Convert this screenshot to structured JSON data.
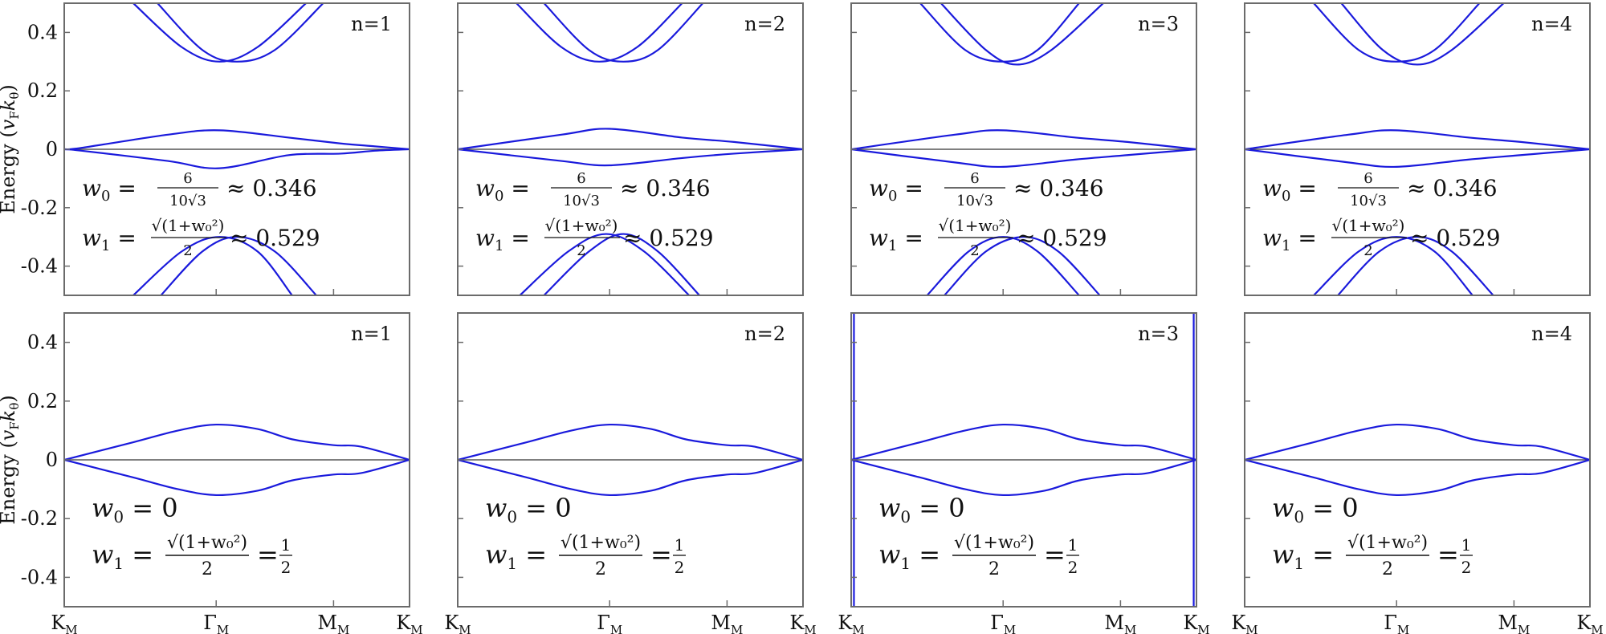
{
  "chart_data": [
    {
      "type": "line",
      "row": 0,
      "panel_label": "n=1",
      "ylabel": "Energy (v_F k_θ)",
      "x_ticks": [
        "K_M",
        "Γ_M",
        "M_M",
        "K_M"
      ],
      "ylim": [
        -0.5,
        0.5
      ],
      "y_ticks": [
        0.4,
        0.2,
        0,
        -0.2,
        -0.4
      ],
      "y_tick_labels": [
        "0.4",
        "0.2",
        "0",
        "-0.2",
        "-0.4"
      ],
      "annotation": {
        "w0": "w₀ = 6/(10√3) ≈ 0.346",
        "w1": "w₁ = √(1+w₀²)/2 ≈ 0.529"
      },
      "series": [
        {
          "x": [
            0,
            0.05,
            0.3,
            0.45,
            0.65,
            0.8,
            0.9,
            1.0
          ],
          "y": [
            0,
            0.005,
            0.05,
            0.065,
            0.04,
            0.02,
            0.01,
            0
          ]
        },
        {
          "x": [
            0,
            0.05,
            0.3,
            0.45,
            0.65,
            0.8,
            0.9,
            1.0
          ],
          "y": [
            0,
            -0.005,
            -0.04,
            -0.065,
            -0.02,
            -0.015,
            -0.005,
            0
          ]
        },
        {
          "x": [
            0.2,
            0.34,
            0.45,
            0.56,
            0.7
          ],
          "y": [
            0.5,
            0.35,
            0.3,
            0.35,
            0.5
          ]
        },
        {
          "x": [
            0.27,
            0.4,
            0.5,
            0.61,
            0.75
          ],
          "y": [
            0.5,
            0.34,
            0.3,
            0.34,
            0.5
          ]
        },
        {
          "x": [
            0.2,
            0.34,
            0.45,
            0.56,
            0.66
          ],
          "y": [
            -0.5,
            -0.35,
            -0.3,
            -0.35,
            -0.5
          ]
        },
        {
          "x": [
            0.28,
            0.4,
            0.5,
            0.61,
            0.73
          ],
          "y": [
            -0.5,
            -0.35,
            -0.3,
            -0.35,
            -0.5
          ]
        }
      ]
    },
    {
      "type": "line",
      "row": 0,
      "panel_label": "n=2",
      "x_ticks": [
        "K_M",
        "Γ_M",
        "M_M",
        "K_M"
      ],
      "ylim": [
        -0.5,
        0.5
      ],
      "annotation": {
        "w0": "w₀ = 6/(10√3) ≈ 0.346",
        "w1": "w₁ = √(1+w₀²)/2 ≈ 0.529"
      },
      "series": [
        {
          "x": [
            0,
            0.3,
            0.44,
            0.65,
            0.8,
            1.0
          ],
          "y": [
            0,
            0.05,
            0.07,
            0.04,
            0.025,
            0
          ]
        },
        {
          "x": [
            0,
            0.3,
            0.44,
            0.65,
            0.8,
            1.0
          ],
          "y": [
            0,
            -0.04,
            -0.055,
            -0.03,
            -0.015,
            0
          ]
        },
        {
          "x": [
            0.17,
            0.3,
            0.41,
            0.52,
            0.65
          ],
          "y": [
            0.5,
            0.35,
            0.3,
            0.35,
            0.5
          ]
        },
        {
          "x": [
            0.25,
            0.38,
            0.48,
            0.58,
            0.71
          ],
          "y": [
            0.5,
            0.34,
            0.3,
            0.34,
            0.5
          ]
        },
        {
          "x": [
            0.18,
            0.32,
            0.43,
            0.54,
            0.67
          ],
          "y": [
            -0.5,
            -0.35,
            -0.29,
            -0.35,
            -0.5
          ]
        },
        {
          "x": [
            0.25,
            0.38,
            0.48,
            0.58,
            0.7
          ],
          "y": [
            -0.5,
            -0.35,
            -0.29,
            -0.35,
            -0.5
          ]
        }
      ]
    },
    {
      "type": "line",
      "row": 0,
      "panel_label": "n=3",
      "x_ticks": [
        "K_M",
        "Γ_M",
        "M_M",
        "K_M"
      ],
      "ylim": [
        -0.5,
        0.5
      ],
      "annotation": {
        "w0": "w₀ = 6/(10√3) ≈ 0.346",
        "w1": "w₁ = √(1+w₀²)/2 ≈ 0.529"
      },
      "series": [
        {
          "x": [
            0,
            0.3,
            0.44,
            0.65,
            0.8,
            1.0
          ],
          "y": [
            0,
            0.05,
            0.065,
            0.04,
            0.025,
            0
          ]
        },
        {
          "x": [
            0,
            0.3,
            0.44,
            0.65,
            0.8,
            1.0
          ],
          "y": [
            0,
            -0.045,
            -0.06,
            -0.035,
            -0.02,
            0
          ]
        },
        {
          "x": [
            0.2,
            0.33,
            0.44,
            0.54,
            0.66
          ],
          "y": [
            0.5,
            0.34,
            0.3,
            0.34,
            0.5
          ]
        },
        {
          "x": [
            0.26,
            0.39,
            0.48,
            0.58,
            0.73
          ],
          "y": [
            0.5,
            0.34,
            0.29,
            0.34,
            0.5
          ]
        },
        {
          "x": [
            0.22,
            0.34,
            0.44,
            0.54,
            0.66
          ],
          "y": [
            -0.5,
            -0.35,
            -0.3,
            -0.35,
            -0.5
          ]
        },
        {
          "x": [
            0.27,
            0.39,
            0.5,
            0.6,
            0.72
          ],
          "y": [
            -0.5,
            -0.35,
            -0.3,
            -0.35,
            -0.5
          ]
        }
      ]
    },
    {
      "type": "line",
      "row": 0,
      "panel_label": "n=4",
      "x_ticks": [
        "K_M",
        "Γ_M",
        "M_M",
        "K_M"
      ],
      "ylim": [
        -0.5,
        0.5
      ],
      "annotation": {
        "w0": "w₀ = 6/(10√3) ≈ 0.346",
        "w1": "w₁ = √(1+w₀²)/2 ≈ 0.529"
      },
      "series": [
        {
          "x": [
            0,
            0.3,
            0.44,
            0.65,
            0.8,
            1.0
          ],
          "y": [
            0,
            0.05,
            0.065,
            0.04,
            0.025,
            0
          ]
        },
        {
          "x": [
            0,
            0.3,
            0.44,
            0.65,
            0.8,
            1.0
          ],
          "y": [
            0,
            -0.045,
            -0.06,
            -0.035,
            -0.02,
            0
          ]
        },
        {
          "x": [
            0.2,
            0.33,
            0.44,
            0.55,
            0.68
          ],
          "y": [
            0.5,
            0.34,
            0.3,
            0.34,
            0.5
          ]
        },
        {
          "x": [
            0.28,
            0.4,
            0.5,
            0.6,
            0.75
          ],
          "y": [
            0.5,
            0.34,
            0.29,
            0.34,
            0.5
          ]
        },
        {
          "x": [
            0.2,
            0.33,
            0.44,
            0.55,
            0.66
          ],
          "y": [
            -0.5,
            -0.35,
            -0.3,
            -0.35,
            -0.5
          ]
        },
        {
          "x": [
            0.27,
            0.39,
            0.5,
            0.6,
            0.72
          ],
          "y": [
            -0.5,
            -0.35,
            -0.3,
            -0.35,
            -0.5
          ]
        }
      ]
    },
    {
      "type": "line",
      "row": 1,
      "panel_label": "n=1",
      "ylabel": "Energy (v_F k_θ)",
      "x_ticks": [
        "K_M",
        "Γ_M",
        "M_M",
        "K_M"
      ],
      "ylim": [
        -0.5,
        0.5
      ],
      "y_ticks": [
        0.4,
        0.2,
        0,
        -0.2,
        -0.4
      ],
      "y_tick_labels": [
        "0.4",
        "0.2",
        "0",
        "-0.2",
        "-0.4"
      ],
      "annotation": {
        "w0": "w₀ = 0",
        "w1": "w₁ = √(1+w₀²)/2 = 1/2"
      },
      "series": [
        {
          "x": [
            0,
            0.2,
            0.33,
            0.44,
            0.56,
            0.66,
            0.78,
            0.86,
            1.0
          ],
          "y": [
            0,
            0.06,
            0.1,
            0.12,
            0.105,
            0.07,
            0.05,
            0.045,
            0
          ]
        },
        {
          "x": [
            0,
            0.2,
            0.33,
            0.44,
            0.56,
            0.66,
            0.78,
            0.86,
            1.0
          ],
          "y": [
            0,
            -0.06,
            -0.1,
            -0.12,
            -0.105,
            -0.07,
            -0.05,
            -0.045,
            0
          ]
        }
      ]
    },
    {
      "type": "line",
      "row": 1,
      "panel_label": "n=2",
      "x_ticks": [
        "K_M",
        "Γ_M",
        "M_M",
        "K_M"
      ],
      "ylim": [
        -0.5,
        0.5
      ],
      "annotation": {
        "w0": "w₀ = 0",
        "w1": "w₁ = √(1+w₀²)/2 = 1/2"
      },
      "series": [
        {
          "x": [
            0,
            0.2,
            0.33,
            0.44,
            0.56,
            0.66,
            0.78,
            0.86,
            1.0
          ],
          "y": [
            0,
            0.06,
            0.1,
            0.12,
            0.105,
            0.07,
            0.05,
            0.045,
            0
          ]
        },
        {
          "x": [
            0,
            0.2,
            0.33,
            0.44,
            0.56,
            0.66,
            0.78,
            0.86,
            1.0
          ],
          "y": [
            0,
            -0.06,
            -0.1,
            -0.12,
            -0.105,
            -0.07,
            -0.05,
            -0.045,
            0
          ]
        }
      ]
    },
    {
      "type": "line",
      "row": 1,
      "panel_label": "n=3",
      "x_ticks": [
        "K_M",
        "Γ_M",
        "M_M",
        "K_M"
      ],
      "ylim": [
        -0.5,
        0.5
      ],
      "annotation": {
        "w0": "w₀ = 0",
        "w1": "w₁ = √(1+w₀²)/2 = 1/2"
      },
      "series": [
        {
          "x": [
            0,
            0.2,
            0.33,
            0.44,
            0.56,
            0.66,
            0.78,
            0.86,
            1.0
          ],
          "y": [
            0,
            0.06,
            0.1,
            0.12,
            0.105,
            0.07,
            0.05,
            0.045,
            0
          ]
        },
        {
          "x": [
            0,
            0.2,
            0.33,
            0.44,
            0.56,
            0.66,
            0.78,
            0.86,
            1.0
          ],
          "y": [
            0,
            -0.06,
            -0.1,
            -0.12,
            -0.105,
            -0.07,
            -0.05,
            -0.045,
            0
          ]
        },
        {
          "x": [
            0.008,
            0.008
          ],
          "y": [
            0.5,
            -0.5
          ]
        },
        {
          "x": [
            0.992,
            0.992
          ],
          "y": [
            0.5,
            -0.5
          ]
        }
      ]
    },
    {
      "type": "line",
      "row": 1,
      "panel_label": "n=4",
      "x_ticks": [
        "K_M",
        "Γ_M",
        "M_M",
        "K_M"
      ],
      "ylim": [
        -0.5,
        0.5
      ],
      "annotation": {
        "w0": "w₀ = 0",
        "w1": "w₁ = √(1+w₀²)/2 = 1/2"
      },
      "series": [
        {
          "x": [
            0,
            0.2,
            0.33,
            0.44,
            0.56,
            0.66,
            0.78,
            0.86,
            1.0
          ],
          "y": [
            0,
            0.06,
            0.1,
            0.12,
            0.105,
            0.07,
            0.05,
            0.045,
            0
          ]
        },
        {
          "x": [
            0,
            0.2,
            0.33,
            0.44,
            0.56,
            0.66,
            0.78,
            0.86,
            1.0
          ],
          "y": [
            0,
            -0.06,
            -0.1,
            -0.12,
            -0.105,
            -0.07,
            -0.05,
            -0.045,
            0
          ]
        }
      ]
    }
  ],
  "colors": {
    "band": "#1a1adc",
    "zero_line": "#555555",
    "frame": "#6b6b6b"
  }
}
